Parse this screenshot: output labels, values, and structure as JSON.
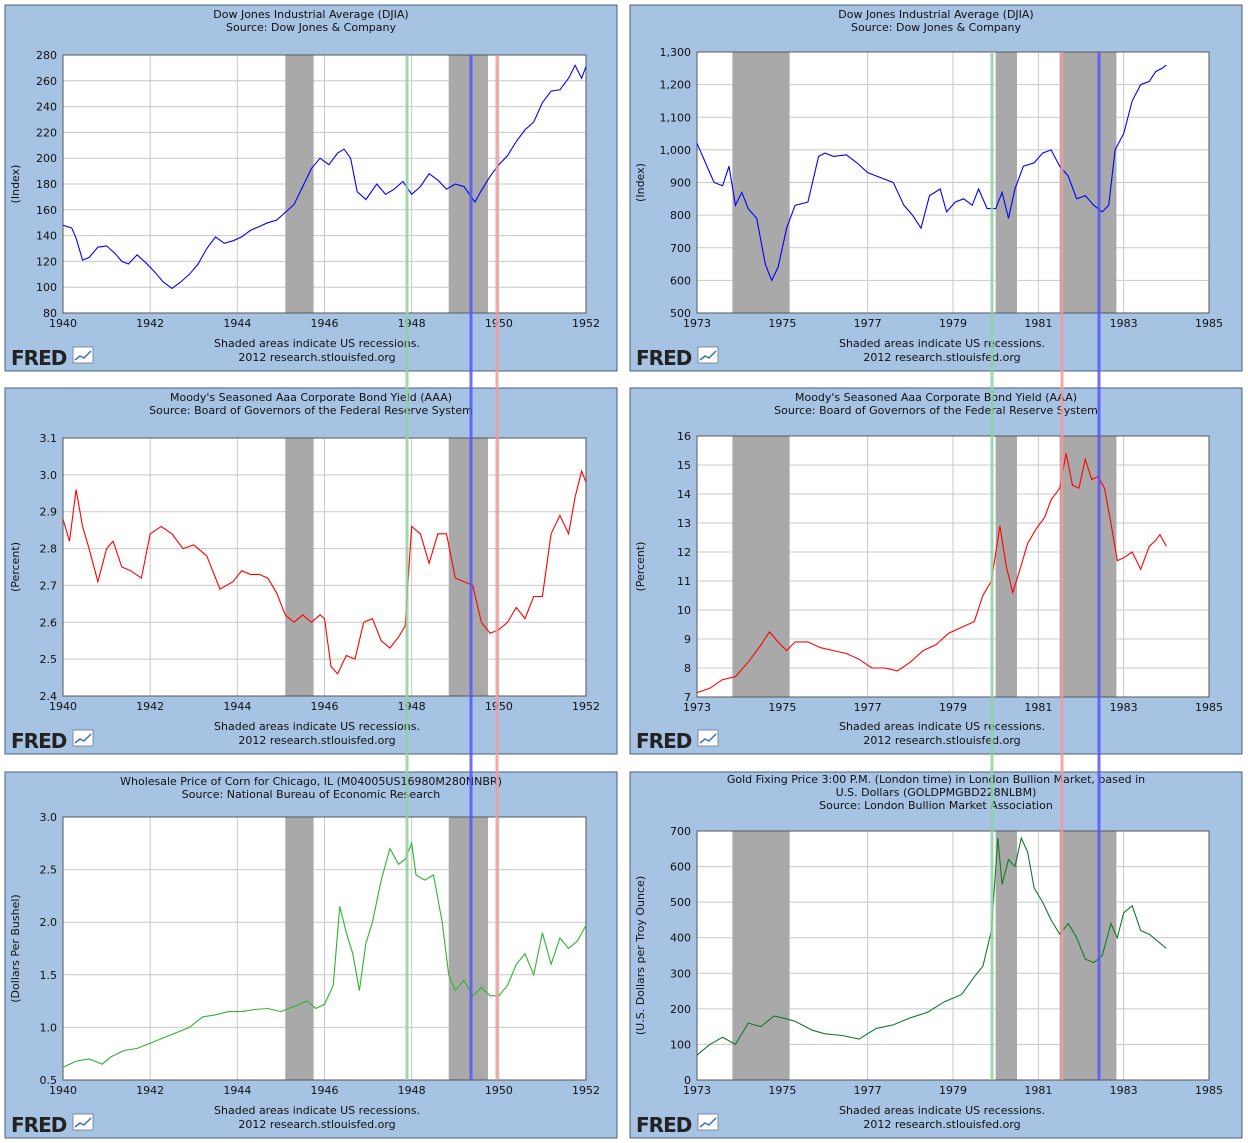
{
  "footer": {
    "recession_note": "Shaded areas indicate US recessions.",
    "source_line": "2012 research.stlouisfed.org",
    "logo": "FRED"
  },
  "colors": {
    "panel_bg": "#a6c3e3",
    "recession": "#a9a9a9",
    "blue_line": "#0000ff",
    "red_line": "#ff0000",
    "green_line": "#2db52d",
    "dark_green_line": "#117a2c",
    "marker_green": "#8fd19e",
    "marker_blue": "#5555ff",
    "marker_red": "#f29a9a"
  },
  "chart_data": [
    {
      "id": "djia-1940",
      "type": "line",
      "title": [
        "Dow Jones Industrial Average (DJIA)",
        "Source: Dow Jones & Company"
      ],
      "ylabel": "(Index)",
      "xlim": [
        1940,
        1952
      ],
      "ylim": [
        80,
        280
      ],
      "xticks": [
        1940,
        1942,
        1944,
        1946,
        1948,
        1950,
        1952
      ],
      "xtick_labels": [
        "1940",
        "1942",
        "1944",
        "1946",
        "1948",
        "1950",
        "1952"
      ],
      "yticks": [
        80,
        100,
        120,
        140,
        160,
        180,
        200,
        220,
        240,
        260,
        280
      ],
      "ytick_labels": [
        "80",
        "100",
        "120",
        "140",
        "160",
        "180",
        "200",
        "220",
        "240",
        "260",
        "280"
      ],
      "recessions": [
        [
          1945.1,
          1945.75
        ],
        [
          1948.85,
          1949.75
        ]
      ],
      "color": "#0000ff",
      "x": [
        1940.0,
        1940.2,
        1940.3,
        1940.45,
        1940.6,
        1940.8,
        1941.0,
        1941.2,
        1941.35,
        1941.5,
        1941.7,
        1941.9,
        1942.1,
        1942.3,
        1942.5,
        1942.7,
        1942.9,
        1943.1,
        1943.3,
        1943.5,
        1943.7,
        1943.9,
        1944.1,
        1944.3,
        1944.5,
        1944.7,
        1944.9,
        1945.1,
        1945.3,
        1945.5,
        1945.7,
        1945.9,
        1946.1,
        1946.3,
        1946.45,
        1946.6,
        1946.75,
        1946.95,
        1947.2,
        1947.4,
        1947.6,
        1947.8,
        1948.0,
        1948.2,
        1948.4,
        1948.6,
        1948.8,
        1949.0,
        1949.2,
        1949.45,
        1949.6,
        1949.8,
        1950.0,
        1950.2,
        1950.4,
        1950.6,
        1950.8,
        1951.0,
        1951.2,
        1951.4,
        1951.6,
        1951.75,
        1951.9,
        1952.0
      ],
      "y": [
        148,
        146,
        138,
        121,
        123,
        131,
        132,
        126,
        120,
        118,
        125,
        119,
        112,
        104,
        99,
        104,
        110,
        118,
        130,
        139,
        134,
        136,
        139,
        144,
        147,
        150,
        152,
        158,
        164,
        178,
        192,
        200,
        195,
        204,
        207,
        200,
        174,
        168,
        180,
        172,
        176,
        182,
        172,
        178,
        188,
        183,
        176,
        180,
        178,
        166,
        175,
        186,
        195,
        202,
        213,
        222,
        228,
        243,
        252,
        253,
        262,
        272,
        262,
        271
      ]
    },
    {
      "id": "djia-1973",
      "type": "line",
      "title": [
        "Dow Jones Industrial Average (DJIA)",
        "Source: Dow Jones & Company"
      ],
      "ylabel": "(Index)",
      "xlim": [
        1973,
        1985
      ],
      "ylim": [
        500,
        1300
      ],
      "xticks": [
        1973,
        1975,
        1977,
        1979,
        1981,
        1983,
        1985
      ],
      "xtick_labels": [
        "1973",
        "1975",
        "1977",
        "1979",
        "1981",
        "1983",
        "1985"
      ],
      "yticks": [
        500,
        600,
        700,
        800,
        900,
        1000,
        1100,
        1200,
        1300
      ],
      "ytick_labels": [
        "500",
        "600",
        "700",
        "800",
        "900",
        "1,000",
        "1,100",
        "1,200",
        "1,300"
      ],
      "recessions": [
        [
          1973.83,
          1975.17
        ],
        [
          1980.0,
          1980.5
        ],
        [
          1981.5,
          1982.83
        ]
      ],
      "color": "#0000ff",
      "x": [
        1973.0,
        1973.2,
        1973.4,
        1973.6,
        1973.75,
        1973.9,
        1974.05,
        1974.2,
        1974.4,
        1974.6,
        1974.75,
        1974.9,
        1975.1,
        1975.3,
        1975.6,
        1975.85,
        1976.0,
        1976.2,
        1976.5,
        1976.75,
        1977.0,
        1977.3,
        1977.6,
        1977.85,
        1978.05,
        1978.25,
        1978.45,
        1978.7,
        1978.85,
        1979.05,
        1979.25,
        1979.45,
        1979.6,
        1979.8,
        1980.0,
        1980.15,
        1980.3,
        1980.45,
        1980.65,
        1980.9,
        1981.1,
        1981.3,
        1981.5,
        1981.7,
        1981.9,
        1982.1,
        1982.3,
        1982.5,
        1982.65,
        1982.8,
        1983.0,
        1983.2,
        1983.4,
        1983.6,
        1983.75,
        1983.9,
        1984.0
      ],
      "y": [
        1020,
        960,
        900,
        890,
        950,
        830,
        870,
        820,
        790,
        650,
        600,
        640,
        760,
        830,
        840,
        980,
        990,
        980,
        985,
        960,
        930,
        915,
        900,
        830,
        800,
        760,
        860,
        880,
        810,
        840,
        850,
        830,
        880,
        820,
        820,
        870,
        790,
        880,
        950,
        960,
        990,
        1000,
        950,
        920,
        850,
        860,
        830,
        810,
        830,
        1000,
        1050,
        1150,
        1200,
        1210,
        1240,
        1250,
        1260
      ]
    },
    {
      "id": "aaa-1940",
      "type": "line",
      "title": [
        "Moody's Seasoned Aaa Corporate Bond Yield (AAA)",
        "Source: Board of Governors of the Federal Reserve System"
      ],
      "ylabel": "(Percent)",
      "xlim": [
        1940,
        1952
      ],
      "ylim": [
        2.4,
        3.1
      ],
      "xticks": [
        1940,
        1942,
        1944,
        1946,
        1948,
        1950,
        1952
      ],
      "xtick_labels": [
        "1940",
        "1942",
        "1944",
        "1946",
        "1948",
        "1950",
        "1952"
      ],
      "yticks": [
        2.4,
        2.5,
        2.6,
        2.7,
        2.8,
        2.9,
        3.0,
        3.1
      ],
      "ytick_labels": [
        "2.4",
        "2.5",
        "2.6",
        "2.7",
        "2.8",
        "2.9",
        "3.0",
        "3.1"
      ],
      "recessions": [
        [
          1945.1,
          1945.75
        ],
        [
          1948.85,
          1949.75
        ]
      ],
      "color": "#ff0000",
      "x": [
        1940.0,
        1940.15,
        1940.3,
        1940.45,
        1940.6,
        1940.8,
        1941.0,
        1941.15,
        1941.35,
        1941.55,
        1941.8,
        1942.0,
        1942.25,
        1942.5,
        1942.75,
        1943.0,
        1943.3,
        1943.6,
        1943.9,
        1944.1,
        1944.3,
        1944.5,
        1944.7,
        1944.9,
        1945.1,
        1945.3,
        1945.5,
        1945.7,
        1945.9,
        1946.0,
        1946.15,
        1946.3,
        1946.5,
        1946.7,
        1946.9,
        1947.1,
        1947.3,
        1947.5,
        1947.7,
        1947.85,
        1948.0,
        1948.2,
        1948.4,
        1948.6,
        1948.8,
        1949.0,
        1949.2,
        1949.4,
        1949.6,
        1949.8,
        1950.0,
        1950.2,
        1950.4,
        1950.6,
        1950.8,
        1951.0,
        1951.2,
        1951.4,
        1951.6,
        1951.75,
        1951.9,
        1952.0
      ],
      "y": [
        2.88,
        2.82,
        2.96,
        2.86,
        2.8,
        2.71,
        2.8,
        2.82,
        2.75,
        2.74,
        2.72,
        2.84,
        2.86,
        2.84,
        2.8,
        2.81,
        2.78,
        2.69,
        2.71,
        2.74,
        2.73,
        2.73,
        2.72,
        2.68,
        2.62,
        2.6,
        2.62,
        2.6,
        2.62,
        2.61,
        2.48,
        2.46,
        2.51,
        2.5,
        2.6,
        2.61,
        2.55,
        2.53,
        2.56,
        2.59,
        2.86,
        2.84,
        2.76,
        2.84,
        2.84,
        2.72,
        2.71,
        2.7,
        2.6,
        2.57,
        2.58,
        2.6,
        2.64,
        2.61,
        2.67,
        2.67,
        2.84,
        2.89,
        2.84,
        2.94,
        3.01,
        2.98
      ]
    },
    {
      "id": "aaa-1973",
      "type": "line",
      "title": [
        "Moody's Seasoned Aaa Corporate Bond Yield (AAA)",
        "Source: Board of Governors of the Federal Reserve System"
      ],
      "ylabel": "(Percent)",
      "xlim": [
        1973,
        1985
      ],
      "ylim": [
        7,
        16
      ],
      "xticks": [
        1973,
        1975,
        1977,
        1979,
        1981,
        1983,
        1985
      ],
      "xtick_labels": [
        "1973",
        "1975",
        "1977",
        "1979",
        "1981",
        "1983",
        "1985"
      ],
      "yticks": [
        7,
        8,
        9,
        10,
        11,
        12,
        13,
        14,
        15,
        16
      ],
      "ytick_labels": [
        "7",
        "8",
        "9",
        "10",
        "11",
        "12",
        "13",
        "14",
        "15",
        "16"
      ],
      "recessions": [
        [
          1973.83,
          1975.17
        ],
        [
          1980.0,
          1980.5
        ],
        [
          1981.5,
          1982.83
        ]
      ],
      "color": "#ff0000",
      "x": [
        1973.0,
        1973.3,
        1973.6,
        1973.9,
        1974.2,
        1974.5,
        1974.7,
        1974.9,
        1975.1,
        1975.3,
        1975.6,
        1975.9,
        1976.2,
        1976.5,
        1976.8,
        1977.1,
        1977.4,
        1977.7,
        1978.0,
        1978.3,
        1978.6,
        1978.9,
        1979.2,
        1979.5,
        1979.7,
        1979.9,
        1980.1,
        1980.25,
        1980.4,
        1980.55,
        1980.75,
        1980.95,
        1981.15,
        1981.3,
        1981.5,
        1981.65,
        1981.8,
        1981.95,
        1982.1,
        1982.25,
        1982.4,
        1982.55,
        1982.7,
        1982.85,
        1983.0,
        1983.2,
        1983.4,
        1983.6,
        1983.75,
        1983.85,
        1984.0
      ],
      "y": [
        7.15,
        7.3,
        7.6,
        7.7,
        8.2,
        8.8,
        9.25,
        8.9,
        8.6,
        8.9,
        8.9,
        8.7,
        8.6,
        8.5,
        8.3,
        8.0,
        8.0,
        7.9,
        8.2,
        8.6,
        8.8,
        9.2,
        9.4,
        9.6,
        10.5,
        11.0,
        12.9,
        11.5,
        10.6,
        11.3,
        12.3,
        12.8,
        13.2,
        13.8,
        14.2,
        15.4,
        14.3,
        14.2,
        15.2,
        14.5,
        14.6,
        14.2,
        13.0,
        11.7,
        11.8,
        12.0,
        11.4,
        12.2,
        12.4,
        12.6,
        12.2
      ]
    },
    {
      "id": "corn-1940",
      "type": "line",
      "title": [
        "Wholesale Price of Corn for Chicago, IL (M04005US16980M280NNBR)",
        "Source: National Bureau of Economic Research"
      ],
      "ylabel": "(Dollars Per Bushel)",
      "xlim": [
        1940,
        1952
      ],
      "ylim": [
        0.5,
        3.0
      ],
      "xticks": [
        1940,
        1942,
        1944,
        1946,
        1948,
        1950,
        1952
      ],
      "xtick_labels": [
        "1940",
        "1942",
        "1944",
        "1946",
        "1948",
        "1950",
        "1952"
      ],
      "yticks": [
        0.5,
        1.0,
        1.5,
        2.0,
        2.5,
        3.0
      ],
      "ytick_labels": [
        "0.5",
        "1.0",
        "1.5",
        "2.0",
        "2.5",
        "3.0"
      ],
      "recessions": [
        [
          1945.1,
          1945.75
        ],
        [
          1948.85,
          1949.75
        ]
      ],
      "color": "#2db52d",
      "x": [
        1940.0,
        1940.3,
        1940.6,
        1940.9,
        1941.1,
        1941.4,
        1941.7,
        1942.0,
        1942.3,
        1942.6,
        1942.9,
        1943.2,
        1943.5,
        1943.8,
        1944.1,
        1944.4,
        1944.7,
        1945.0,
        1945.3,
        1945.6,
        1945.8,
        1946.0,
        1946.2,
        1946.35,
        1946.5,
        1946.65,
        1946.8,
        1946.95,
        1947.1,
        1947.3,
        1947.5,
        1947.7,
        1947.85,
        1948.0,
        1948.1,
        1948.3,
        1948.5,
        1948.7,
        1948.85,
        1949.0,
        1949.2,
        1949.4,
        1949.6,
        1949.8,
        1950.0,
        1950.2,
        1950.4,
        1950.6,
        1950.8,
        1951.0,
        1951.2,
        1951.4,
        1951.6,
        1951.8,
        1952.0
      ],
      "y": [
        0.62,
        0.68,
        0.7,
        0.65,
        0.72,
        0.78,
        0.8,
        0.85,
        0.9,
        0.95,
        1.0,
        1.1,
        1.12,
        1.15,
        1.15,
        1.17,
        1.18,
        1.15,
        1.2,
        1.25,
        1.18,
        1.22,
        1.4,
        2.15,
        1.9,
        1.7,
        1.35,
        1.8,
        2.0,
        2.4,
        2.7,
        2.55,
        2.6,
        2.75,
        2.45,
        2.4,
        2.45,
        2.0,
        1.5,
        1.35,
        1.45,
        1.3,
        1.38,
        1.3,
        1.3,
        1.4,
        1.6,
        1.7,
        1.5,
        1.9,
        1.6,
        1.85,
        1.75,
        1.82,
        1.97
      ]
    },
    {
      "id": "gold-1973",
      "type": "line",
      "title": [
        "Gold Fixing Price 3:00 P.M. (London time) in London Bullion Market, based in",
        "U.S. Dollars (GOLDPMGBD228NLBM)",
        "Source: London Bullion Market Association"
      ],
      "ylabel": "(U.S. Dollars per Troy Ounce)",
      "xlim": [
        1973,
        1985
      ],
      "ylim": [
        0,
        700
      ],
      "xticks": [
        1973,
        1975,
        1977,
        1979,
        1981,
        1983,
        1985
      ],
      "xtick_labels": [
        "1973",
        "1975",
        "1977",
        "1979",
        "1981",
        "1983",
        "1985"
      ],
      "yticks": [
        0,
        100,
        200,
        300,
        400,
        500,
        600,
        700
      ],
      "ytick_labels": [
        "0",
        "100",
        "200",
        "300",
        "400",
        "500",
        "600",
        "700"
      ],
      "recessions": [
        [
          1973.83,
          1975.17
        ],
        [
          1980.0,
          1980.5
        ],
        [
          1981.5,
          1982.83
        ]
      ],
      "color": "#117a2c",
      "x": [
        1973.0,
        1973.3,
        1973.6,
        1973.9,
        1974.2,
        1974.5,
        1974.8,
        1975.0,
        1975.3,
        1975.7,
        1976.0,
        1976.4,
        1976.8,
        1977.2,
        1977.6,
        1978.0,
        1978.4,
        1978.8,
        1979.2,
        1979.5,
        1979.7,
        1979.9,
        1980.05,
        1980.15,
        1980.3,
        1980.45,
        1980.6,
        1980.75,
        1980.9,
        1981.1,
        1981.3,
        1981.5,
        1981.7,
        1981.9,
        1982.1,
        1982.3,
        1982.5,
        1982.7,
        1982.85,
        1983.0,
        1983.2,
        1983.4,
        1983.6,
        1983.8,
        1984.0
      ],
      "y": [
        70,
        100,
        120,
        100,
        160,
        150,
        180,
        175,
        165,
        140,
        130,
        125,
        115,
        145,
        155,
        175,
        190,
        220,
        240,
        290,
        320,
        420,
        680,
        550,
        620,
        600,
        680,
        640,
        540,
        500,
        450,
        410,
        440,
        400,
        340,
        330,
        350,
        440,
        400,
        470,
        490,
        420,
        410,
        390,
        370
      ]
    }
  ]
}
